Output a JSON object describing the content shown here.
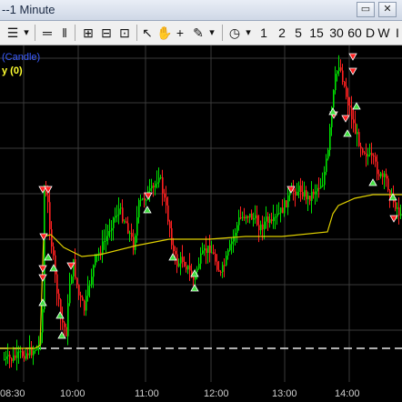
{
  "window": {
    "title": "--1 Minute",
    "restore_glyph": "▭",
    "close_glyph": "✕"
  },
  "toolbar": {
    "glyphs": {
      "menu": "☰",
      "menu_caret": "▾",
      "lines": "═",
      "pause": "‖",
      "zoom_in": "⊞",
      "zoom_out": "⊟",
      "fit": "⊡",
      "cursor": "↖",
      "hand": "✋",
      "plus": "+",
      "pencil": "✎",
      "pencil_caret": "▾",
      "clock": "◷",
      "clock_caret": "▾"
    },
    "intervals": [
      "1",
      "2",
      "5",
      "15",
      "30",
      "60",
      "D",
      "W",
      "I"
    ]
  },
  "legend": {
    "line1": "(Candle)",
    "line2": "y (0)"
  },
  "chart_data": {
    "type": "candlestick",
    "x_tick_labels": [
      "08:30",
      "10:00",
      "11:00",
      "12:00",
      "13:00",
      "14:00"
    ],
    "price_color_up": "#00e000",
    "price_color_down": "#ff2020",
    "vwap_color": "#e0d000",
    "marker_buy_color": "#40e040",
    "marker_sell_color": "#ff2020",
    "grid": true,
    "dashed_reference_line": true
  }
}
